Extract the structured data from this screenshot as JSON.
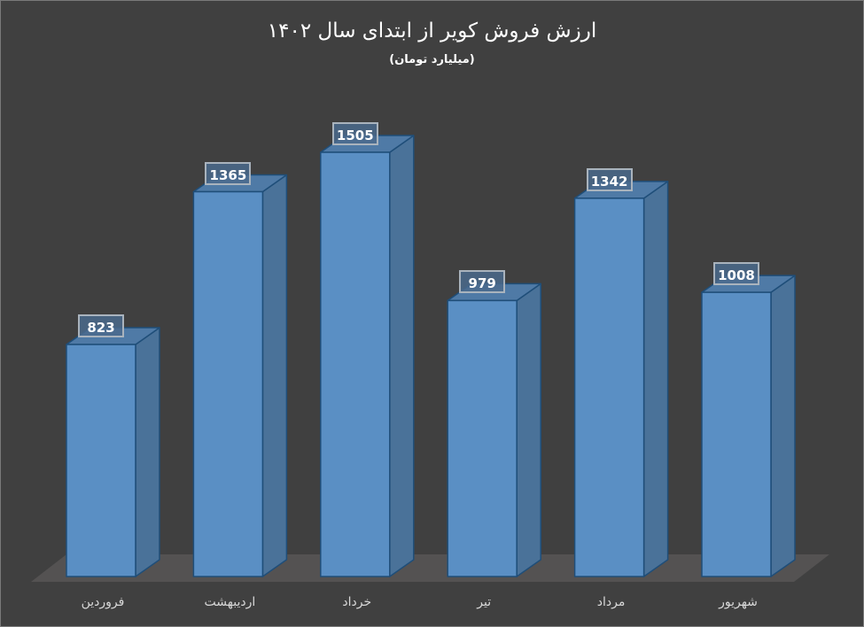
{
  "chart_data": {
    "type": "bar",
    "title": "ارزش فروش کویر از ابتدای سال ۱۴۰۲",
    "subtitle": "(میلیارد تومان)",
    "xlabel": "",
    "ylabel": "",
    "categories": [
      "فروردین",
      "اردیبهشت",
      "خرداد",
      "تیر",
      "مرداد",
      "شهریور"
    ],
    "values": [
      823,
      1365,
      1505,
      979,
      1342,
      1008
    ],
    "value_labels": [
      "823",
      "1365",
      "1505",
      "979",
      "1342",
      "1008"
    ],
    "style": "3d-column",
    "grid": false,
    "legend": "none",
    "colors": {
      "background": "#404040",
      "bar_front": "#5a8fc4",
      "bar_side": "#4a7299",
      "bar_top": "#4f7aa6",
      "bar_edge": "#1f4e79",
      "floor": "#545252",
      "title_text": "#ffffff",
      "axis_text": "#d8d8d8"
    }
  }
}
